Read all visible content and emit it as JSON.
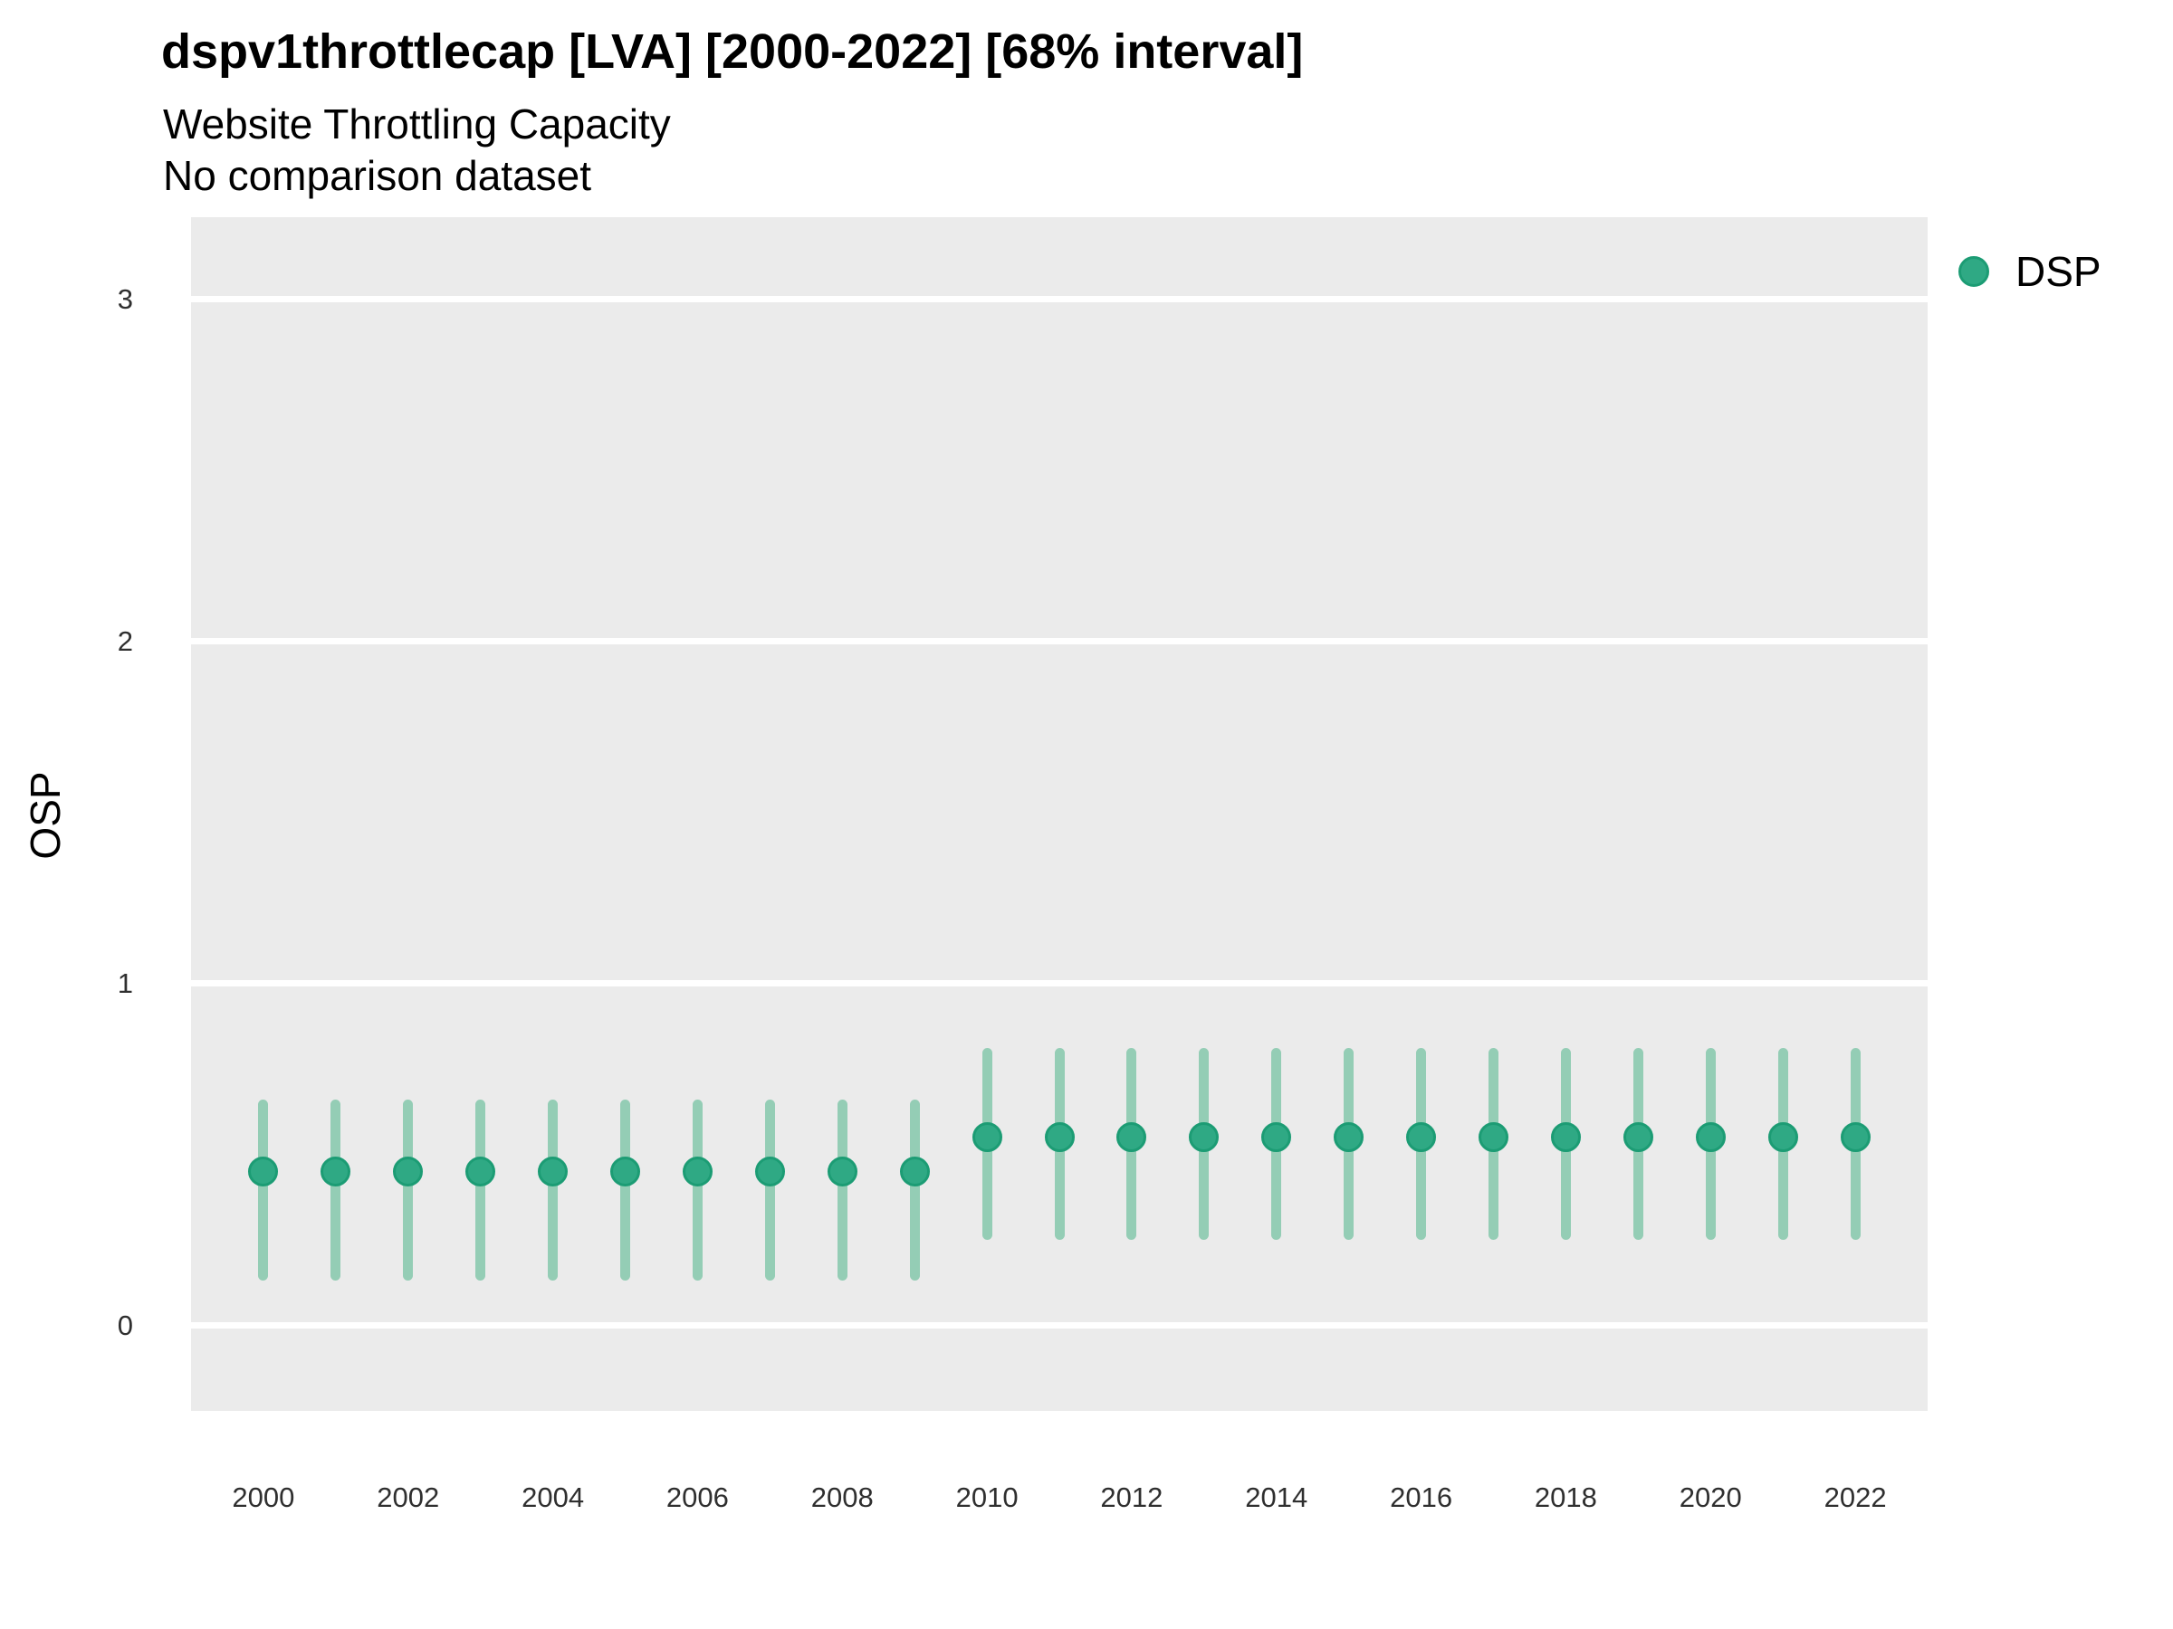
{
  "title": "dspv1throttlecap [LVA] [2000-2022] [68% interval]",
  "subtitle_line1": "Website Throttling Capacity",
  "subtitle_line2": "No comparison dataset",
  "y_axis_title": "OSP",
  "legend": {
    "position": "top-right",
    "items": [
      {
        "label": "DSP",
        "marker": "circle"
      }
    ]
  },
  "colors": {
    "point_fill": "#2FA984",
    "point_stroke": "#1C9C74",
    "interval_line": "#94CDB5",
    "panel_background": "#EBEBEB",
    "gridline": "#FFFFFF",
    "title_text": "#000000",
    "tick_text": "#2F2F2F"
  },
  "chart_data": {
    "type": "scatter",
    "subtype": "pointrange",
    "title": "dspv1throttlecap [LVA] [2000-2022] [68% interval]",
    "subtitle": [
      "Website Throttling Capacity",
      "No comparison dataset"
    ],
    "xlabel": "",
    "ylabel": "OSP",
    "interval_level": "68%",
    "grid": "major-y-white-on-gray",
    "legend_position": "right-top",
    "x": [
      2000,
      2001,
      2002,
      2003,
      2004,
      2005,
      2006,
      2007,
      2008,
      2009,
      2010,
      2011,
      2012,
      2013,
      2014,
      2015,
      2016,
      2017,
      2018,
      2019,
      2020,
      2021,
      2022
    ],
    "series": [
      {
        "name": "DSP",
        "values": [
          0.45,
          0.45,
          0.45,
          0.45,
          0.45,
          0.45,
          0.45,
          0.45,
          0.45,
          0.45,
          0.55,
          0.55,
          0.55,
          0.55,
          0.55,
          0.55,
          0.55,
          0.55,
          0.55,
          0.55,
          0.55,
          0.55,
          0.55
        ],
        "lower": [
          0.13,
          0.13,
          0.13,
          0.13,
          0.13,
          0.13,
          0.13,
          0.13,
          0.13,
          0.13,
          0.25,
          0.25,
          0.25,
          0.25,
          0.25,
          0.25,
          0.25,
          0.25,
          0.25,
          0.25,
          0.25,
          0.25,
          0.25
        ],
        "upper": [
          0.66,
          0.66,
          0.66,
          0.66,
          0.66,
          0.66,
          0.66,
          0.66,
          0.66,
          0.66,
          0.81,
          0.81,
          0.81,
          0.81,
          0.81,
          0.81,
          0.81,
          0.81,
          0.81,
          0.81,
          0.81,
          0.81,
          0.81
        ]
      }
    ],
    "xticks": [
      2000,
      2002,
      2004,
      2006,
      2008,
      2010,
      2012,
      2014,
      2016,
      2018,
      2020,
      2022
    ],
    "yticks": [
      0,
      1,
      2,
      3
    ],
    "xlim": [
      1999.0,
      2023.0
    ],
    "ylim": [
      -0.25,
      3.24
    ]
  }
}
